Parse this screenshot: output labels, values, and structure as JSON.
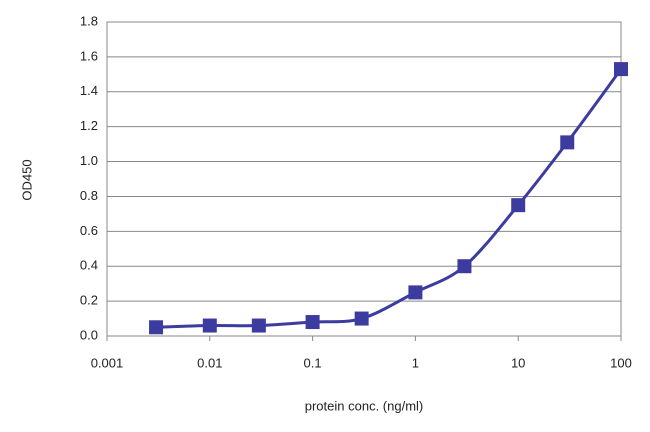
{
  "chart_data": {
    "type": "line",
    "xlabel": "protein conc. (ng/ml)",
    "ylabel": "OD450",
    "x": [
      0.003,
      0.01,
      0.03,
      0.1,
      0.3,
      1,
      3,
      10,
      30,
      100
    ],
    "values": [
      0.05,
      0.06,
      0.06,
      0.08,
      0.1,
      0.25,
      0.4,
      0.75,
      1.11,
      1.53
    ],
    "color": "#3c3ca0",
    "xscale": "log",
    "grid": true,
    "xlim": [
      0.001,
      100
    ],
    "xticks": [
      0.001,
      0.01,
      0.1,
      1,
      10,
      100
    ],
    "ylim": [
      0,
      1.8
    ],
    "yticks": [
      {
        "value": 0,
        "label": "0.0"
      },
      0.2,
      0.4,
      0.6,
      0.8,
      {
        "value": 1.0,
        "label": "1.0"
      },
      1.2,
      1.4,
      1.6,
      1.8
    ]
  }
}
